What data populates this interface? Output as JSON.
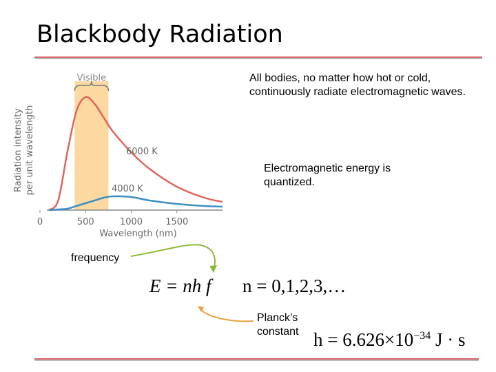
{
  "title": "Blackbody Radiation",
  "chart": {
    "type": "line",
    "band_label": "Visible",
    "band": [
      380,
      750
    ],
    "y_label": [
      "Radiation intensity",
      "per unit wavelength"
    ],
    "x_label": "Wavelength (nm)",
    "xlim": [
      0,
      2000
    ],
    "ylim": [
      0,
      100
    ],
    "xticks": [
      0,
      500,
      1000,
      1500
    ],
    "x": [
      100,
      200,
      300,
      400,
      500,
      600,
      700,
      800,
      1000,
      1200,
      1500,
      1800,
      2000
    ],
    "series": [
      {
        "name": "6000 K",
        "color": "#e0645a",
        "values": [
          0,
          7,
          42,
          72,
          82,
          77,
          67,
          57,
          42,
          30,
          17,
          9,
          6
        ]
      },
      {
        "name": "4000 K",
        "color": "#3b8fc4",
        "values": [
          0,
          0.5,
          1,
          3,
          5,
          7,
          9,
          10,
          9.5,
          7,
          4.5,
          3,
          2.5
        ]
      }
    ]
  },
  "paragraph_1": "All bodies, no matter how hot or cold, continuously radiate electromagnetic waves.",
  "paragraph_2": "Electromagnetic energy is quantized.",
  "frequency_label": "frequency",
  "planck_label": [
    "Planck’s",
    "constant"
  ],
  "equation_energy": "E = nh f",
  "equation_n": "n = 0,1,2,3,…",
  "equation_h": {
    "lhs": "h = 6.626×10",
    "exponent": "−34",
    "unit": "J · s"
  }
}
